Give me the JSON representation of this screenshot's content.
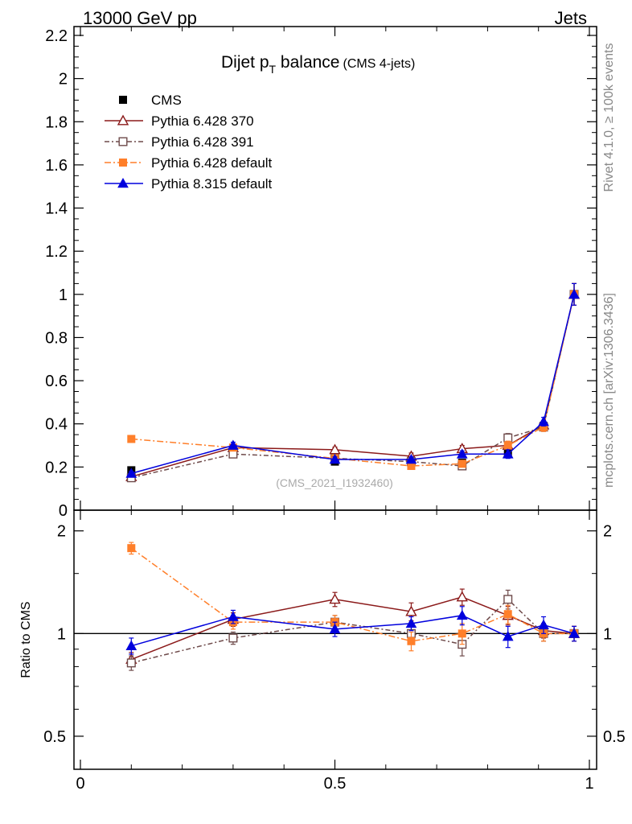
{
  "header": {
    "energy_label": "13000 GeV pp",
    "category_label": "Jets"
  },
  "side_text": {
    "rivet": "Rivet 4.1.0, ≥ 100k events",
    "mcplots": "mcplots.cern.ch [arXiv:1306.3436]"
  },
  "chart_data": {
    "type": "line",
    "title_main": "Dijet p",
    "title_sub": "T",
    "title_tail": " balance",
    "title_note": "(CMS 4-jets)",
    "watermark": "(CMS_2021_I1932460)",
    "ylabel_ratio": "Ratio to CMS",
    "xlim": [
      0,
      1
    ],
    "ylim_main": [
      0,
      2.2
    ],
    "ylim_ratio": [
      0.4,
      2.3
    ],
    "main_ticks": [
      "0",
      "0.2",
      "0.4",
      "0.6",
      "0.8",
      "1",
      "1.2",
      "1.4",
      "1.6",
      "1.8",
      "2",
      "2.2"
    ],
    "main_tick_values": [
      0,
      0.2,
      0.4,
      0.6,
      0.8,
      1,
      1.2,
      1.4,
      1.6,
      1.8,
      2,
      2.2
    ],
    "ratio_ticks": [
      "0.5",
      "1",
      "2"
    ],
    "ratio_tick_values": [
      0.5,
      1,
      2
    ],
    "x_ticks": [
      "0",
      "0.5",
      "1"
    ],
    "x_tick_values": [
      0,
      0.5,
      1
    ],
    "x": [
      0.1,
      0.3,
      0.5,
      0.65,
      0.75,
      0.84,
      0.91,
      0.97
    ],
    "data": {
      "name": "CMS",
      "values": [
        0.185,
        0.27,
        0.225,
        0.22,
        0.22,
        0.265,
        0.39,
        1.0
      ],
      "errors": [
        0.01,
        0.01,
        0.01,
        0.01,
        0.01,
        0.01,
        0.015,
        0.05
      ]
    },
    "series": [
      {
        "name": "Pythia 6.428 370",
        "color": "#8b1a1a",
        "marker": "open-triangle",
        "dash": "",
        "values": [
          0.155,
          0.29,
          0.28,
          0.25,
          0.285,
          0.3,
          0.395,
          1.0
        ],
        "errors": [
          0.01,
          0.015,
          0.012,
          0.015,
          0.015,
          0.02,
          0.02,
          0.05
        ],
        "ratio": [
          0.84,
          1.1,
          1.26,
          1.16,
          1.28,
          1.13,
          1.02,
          1.0
        ],
        "ratio_err": [
          0.04,
          0.05,
          0.06,
          0.07,
          0.07,
          0.07,
          0.05,
          0.05
        ]
      },
      {
        "name": "Pythia 6.428 391",
        "color": "#6e4a4a",
        "marker": "open-square",
        "dash": "6,3,2,3",
        "values": [
          0.15,
          0.26,
          0.24,
          0.225,
          0.205,
          0.335,
          0.385,
          1.0
        ],
        "errors": [
          0.01,
          0.012,
          0.012,
          0.012,
          0.015,
          0.02,
          0.02,
          0.05
        ],
        "ratio": [
          0.82,
          0.97,
          1.08,
          1.0,
          0.93,
          1.26,
          1.0,
          1.0
        ],
        "ratio_err": [
          0.04,
          0.04,
          0.05,
          0.05,
          0.07,
          0.08,
          0.05,
          0.05
        ]
      },
      {
        "name": "Pythia 6.428 default",
        "color": "#ff7f2a",
        "marker": "filled-square",
        "dash": "8,3,2,3",
        "values": [
          0.33,
          0.29,
          0.24,
          0.205,
          0.215,
          0.3,
          0.385,
          1.0
        ],
        "errors": [
          0.015,
          0.015,
          0.012,
          0.012,
          0.015,
          0.02,
          0.02,
          0.05
        ],
        "ratio": [
          1.78,
          1.08,
          1.08,
          0.95,
          1.0,
          1.14,
          1.0,
          1.0
        ],
        "ratio_err": [
          0.07,
          0.05,
          0.05,
          0.06,
          0.07,
          0.07,
          0.05,
          0.05
        ]
      },
      {
        "name": "Pythia 8.315 default",
        "color": "#0000dd",
        "marker": "filled-triangle",
        "dash": "",
        "values": [
          0.17,
          0.3,
          0.235,
          0.235,
          0.26,
          0.26,
          0.41,
          1.0
        ],
        "errors": [
          0.01,
          0.015,
          0.012,
          0.012,
          0.015,
          0.02,
          0.02,
          0.05
        ],
        "ratio": [
          0.92,
          1.12,
          1.03,
          1.07,
          1.13,
          0.98,
          1.06,
          1.0
        ],
        "ratio_err": [
          0.05,
          0.05,
          0.05,
          0.05,
          0.07,
          0.07,
          0.06,
          0.05
        ]
      }
    ]
  }
}
